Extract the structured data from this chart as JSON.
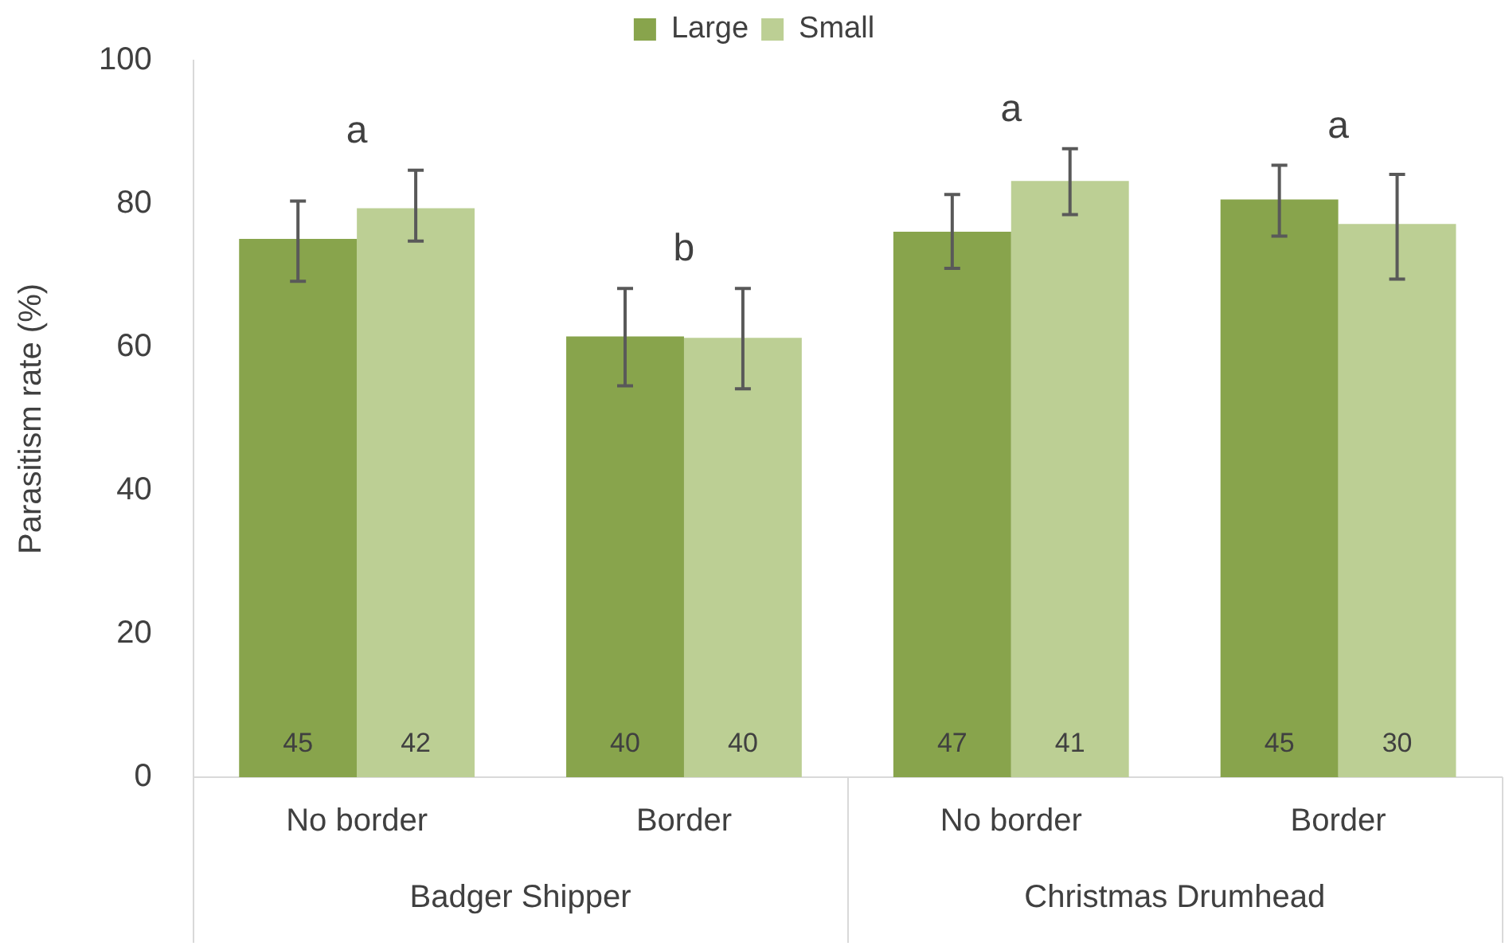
{
  "chart_data": {
    "type": "bar",
    "ylabel": "Parasitism rate (%)",
    "categories": [
      "No border",
      "Border",
      "No border",
      "Border"
    ],
    "series": [
      {
        "name": "Large",
        "color": "#88a44c",
        "values": [
          75.1,
          61.5,
          76.1,
          80.6
        ],
        "errors": [
          [
            69.2,
            80.4
          ],
          [
            54.6,
            68.2
          ],
          [
            71,
            81.3
          ],
          [
            75.5,
            85.4
          ]
        ]
      },
      {
        "name": "Small",
        "color": "#bccf94",
        "values": [
          79.4,
          61.3,
          83.2,
          77.2
        ],
        "errors": [
          [
            74.8,
            84.7
          ],
          [
            54.2,
            68.2
          ],
          [
            78.5,
            87.7
          ],
          [
            69.5,
            84.1
          ]
        ]
      }
    ],
    "annotations": [
      "a",
      "b",
      "a",
      "a",
      "Badger Shipper",
      "Christmas Drumhead",
      "45",
      "40",
      "47",
      "45",
      "42",
      "40",
      "41",
      "30"
    ],
    "ylim": [
      0,
      100
    ],
    "yticks": [
      0,
      20,
      40,
      60,
      80,
      100
    ],
    "legend": "top"
  }
}
